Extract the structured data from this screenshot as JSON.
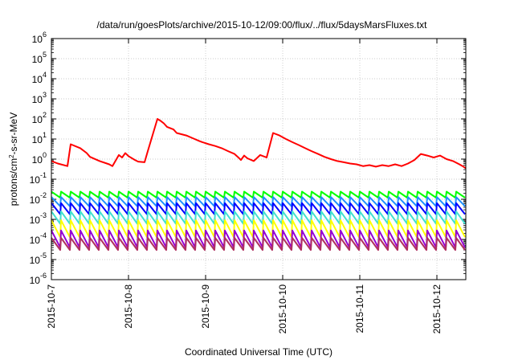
{
  "chart_data": {
    "type": "line",
    "title": "/data/run/goesPlots/archive/2015-10-12/09:00/flux/../flux/5daysMarsFluxes.txt",
    "xlabel": "Coordinated Universal Time (UTC)",
    "ylabel_base": "protons/cm",
    "ylabel_sup": "2",
    "ylabel_rest": "-s-sr-MeV",
    "xlim": [
      "2015-10-07T00:00",
      "2015-10-12T09:00"
    ],
    "ylim": [
      1e-06,
      1000000.0
    ],
    "yscale": "log",
    "x_ticks": [
      "2015-10-7",
      "2015-10-8",
      "2015-10-9",
      "2015-10-10",
      "2015-10-11",
      "2015-10-12"
    ],
    "y_ticks": [
      {
        "base": "10",
        "exp": "6"
      },
      {
        "base": "10",
        "exp": "5"
      },
      {
        "base": "10",
        "exp": "4"
      },
      {
        "base": "10",
        "exp": "3"
      },
      {
        "base": "10",
        "exp": "2"
      },
      {
        "base": "10",
        "exp": "1"
      },
      {
        "base": "10",
        "exp": "0"
      },
      {
        "base": "10",
        "exp": "-1"
      },
      {
        "base": "10",
        "exp": "-2"
      },
      {
        "base": "10",
        "exp": "-3"
      },
      {
        "base": "10",
        "exp": "-4"
      },
      {
        "base": "10",
        "exp": "-5"
      },
      {
        "base": "10",
        "exp": "-6"
      }
    ],
    "grid": true,
    "legend": "none",
    "series": [
      {
        "color": "#ff0000",
        "x": [
          "2015-10-07T00:00",
          "2015-10-07T02:00",
          "2015-10-07T05:00",
          "2015-10-07T06:00",
          "2015-10-07T09:00",
          "2015-10-07T11:00",
          "2015-10-07T12:00",
          "2015-10-07T15:00",
          "2015-10-07T18:00",
          "2015-10-07T19:00",
          "2015-10-07T21:00",
          "2015-10-07T22:00",
          "2015-10-07T23:00",
          "2015-10-08T00:00",
          "2015-10-08T02:00",
          "2015-10-08T03:00",
          "2015-10-08T05:00",
          "2015-10-08T06:00",
          "2015-10-08T09:00",
          "2015-10-08T10:00",
          "2015-10-08T11:00",
          "2015-10-08T12:00",
          "2015-10-08T14:00",
          "2015-10-08T15:00",
          "2015-10-08T18:00",
          "2015-10-08T20:00",
          "2015-10-08T22:00",
          "2015-10-08T23:00",
          "2015-10-09T01:00",
          "2015-10-09T03:00",
          "2015-10-09T05:00",
          "2015-10-09T07:00",
          "2015-10-09T09:00",
          "2015-10-09T10:00",
          "2015-10-09T11:00",
          "2015-10-09T12:00",
          "2015-10-09T13:00",
          "2015-10-09T15:00",
          "2015-10-09T17:00",
          "2015-10-09T19:00",
          "2015-10-09T21:00",
          "2015-10-09T23:00",
          "2015-10-10T01:00",
          "2015-10-10T03:00",
          "2015-10-10T05:00",
          "2015-10-10T07:00",
          "2015-10-10T09:00",
          "2015-10-10T11:00",
          "2015-10-10T13:00",
          "2015-10-10T15:00",
          "2015-10-10T17:00",
          "2015-10-10T19:00",
          "2015-10-10T21:00",
          "2015-10-10T23:00",
          "2015-10-11T01:00",
          "2015-10-11T03:00",
          "2015-10-11T05:00",
          "2015-10-11T07:00",
          "2015-10-11T09:00",
          "2015-10-11T11:00",
          "2015-10-11T13:00",
          "2015-10-11T15:00",
          "2015-10-11T17:00",
          "2015-10-11T19:00",
          "2015-10-11T21:00",
          "2015-10-11T23:00",
          "2015-10-12T01:00",
          "2015-10-12T03:00",
          "2015-10-12T05:00",
          "2015-10-12T07:00",
          "2015-10-12T08:00",
          "2015-10-12T09:00"
        ],
        "y": [
          0.8,
          0.6,
          0.45,
          5.5,
          3.5,
          2.0,
          1.3,
          0.8,
          0.55,
          0.45,
          1.6,
          1.2,
          2.0,
          1.4,
          0.9,
          0.75,
          0.7,
          2.5,
          100,
          80,
          60,
          40,
          30,
          20,
          15,
          11,
          8,
          7,
          5.5,
          4.5,
          3.5,
          2.5,
          1.8,
          1.3,
          0.9,
          1.5,
          1.1,
          0.8,
          1.6,
          1.2,
          20,
          15,
          10,
          7,
          5,
          3.5,
          2.5,
          1.8,
          1.3,
          1.0,
          0.8,
          0.7,
          0.6,
          0.55,
          0.45,
          0.5,
          0.42,
          0.5,
          0.45,
          0.55,
          0.45,
          0.6,
          0.9,
          1.8,
          1.5,
          1.2,
          1.5,
          1.0,
          0.8,
          0.55,
          0.45,
          0.35
        ]
      },
      {
        "color": "#00ff00",
        "x_start": "2015-10-07T00:00",
        "x_end": "2015-10-12T09:00",
        "period_hours": 3,
        "y_high": 0.024,
        "y_low": 0.012
      },
      {
        "color": "#1e90ff",
        "x_start": "2015-10-07T00:00",
        "x_end": "2015-10-12T09:00",
        "period_hours": 3,
        "y_high": 0.013,
        "y_low": 0.0045
      },
      {
        "color": "#0000ff",
        "x_start": "2015-10-07T00:00",
        "x_end": "2015-10-12T09:00",
        "period_hours": 3,
        "y_high": 0.0065,
        "y_low": 0.0018
      },
      {
        "color": "#40e0d0",
        "x_start": "2015-10-07T00:00",
        "x_end": "2015-10-12T09:00",
        "period_hours": 3,
        "y_high": 0.0025,
        "y_low": 0.0006
      },
      {
        "color": "#ffff00",
        "x_start": "2015-10-07T00:00",
        "x_end": "2015-10-12T09:00",
        "period_hours": 3,
        "y_high": 0.0009,
        "y_low": 0.00013
      },
      {
        "color": "#9400d3",
        "x_start": "2015-10-07T00:00",
        "x_end": "2015-10-12T09:00",
        "period_hours": 3,
        "y_high": 0.00028,
        "y_low": 4e-05
      },
      {
        "color": "#b03060",
        "x_start": "2015-10-07T00:00",
        "x_end": "2015-10-12T09:00",
        "period_hours": 3,
        "y_high": 0.00012,
        "y_low": 3e-05
      }
    ]
  }
}
